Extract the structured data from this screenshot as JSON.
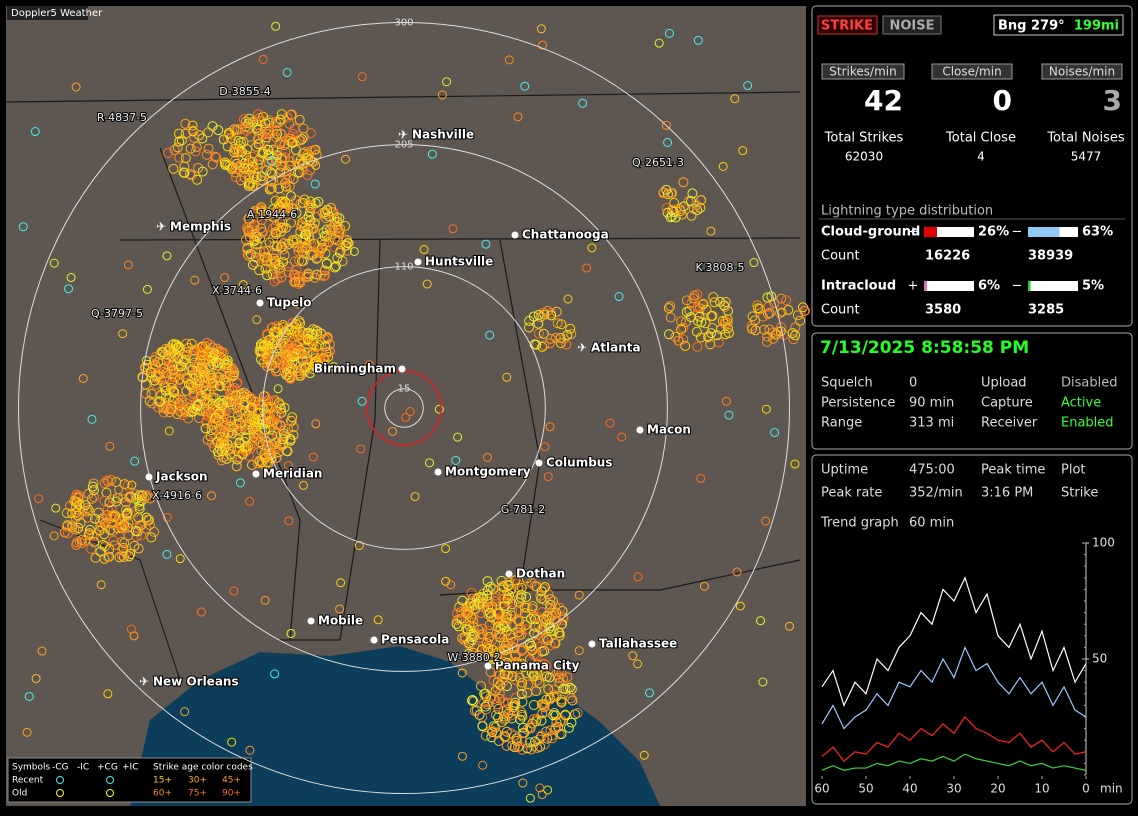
{
  "app_label": "Doppler5 Weather",
  "map": {
    "range_rings": [
      15,
      110,
      205,
      300
    ],
    "cities": [
      "Nashville",
      "Memphis",
      "Chattanooga",
      "Huntsville",
      "Tupelo",
      "Atlanta",
      "Birmingham",
      "Macon",
      "Jackson",
      "Meridian",
      "Montgomery",
      "Columbus",
      "Dothan",
      "Mobile",
      "Pensacola",
      "Tallahassee",
      "Panama City",
      "New Orleans"
    ],
    "stations": [
      "R-4837-5",
      "D-3855-4",
      "Q-2651-3",
      "A-1944-6",
      "K-3808-5",
      "X-3744-6",
      "Q-3797-5",
      "X-4916-6",
      "G-781-2",
      "W-3880-2"
    ],
    "legend": {
      "symbols_label": "Symbols",
      "symbol_types": [
        "-CG",
        "-IC",
        "+CG",
        "+IC"
      ],
      "age_title": "Strike age color codes",
      "rows": [
        "Recent",
        "Old"
      ],
      "ages": [
        "15+",
        "30+",
        "45+",
        "60+",
        "75+",
        "90+"
      ]
    }
  },
  "status": {
    "mode_buttons": [
      "STRIKE",
      "NOISE"
    ],
    "bearing": "Bng 279°",
    "distance": "199mi"
  },
  "rates": [
    {
      "header": "Strikes/min",
      "value": 42,
      "total_label": "Total Strikes",
      "total": 62030
    },
    {
      "header": "Close/min",
      "value": 0,
      "total_label": "Total Close",
      "total": 4
    },
    {
      "header": "Noises/min",
      "value": 3,
      "total_label": "Total Noises",
      "total": 5477
    }
  ],
  "distribution": {
    "title": "Lightning type distribution",
    "plus_sign": "+",
    "minus_sign": "−",
    "count_label": "Count",
    "rows": [
      {
        "label": "Cloud-ground",
        "plus": {
          "value": 26,
          "label": "26%"
        },
        "minus": {
          "value": 63,
          "label": "63%"
        },
        "plus_count": 16226,
        "minus_count": 38939
      },
      {
        "label": "Intracloud",
        "plus": {
          "value": 6,
          "label": "6%"
        },
        "minus": {
          "value": 5,
          "label": "5%"
        },
        "plus_count": 3580,
        "minus_count": 3285
      }
    ]
  },
  "timestamp": "7/13/2025 8:58:58 PM",
  "settings": [
    [
      "Squelch",
      0,
      "Upload",
      "Disabled"
    ],
    [
      "Persistence",
      "90 min",
      "Capture",
      "Active"
    ],
    [
      "Range",
      "313 mi",
      "Receiver",
      "Enabled"
    ]
  ],
  "stats": [
    [
      "Uptime",
      "475:00",
      "Peak time",
      "Plot"
    ],
    [
      "Peak rate",
      "352/min",
      "3:16 PM",
      "Strike"
    ],
    [
      "Trend graph",
      "60 min"
    ]
  ],
  "trend_graph": {
    "xlim": [
      60,
      0
    ],
    "ylim": [
      0,
      100
    ],
    "xticks": [
      60,
      50,
      40,
      30,
      20,
      10,
      0
    ],
    "yticks": [
      50,
      100
    ],
    "x_unit": "min",
    "x": [
      60,
      57.5,
      55,
      52.5,
      50,
      47.5,
      45,
      42.5,
      40,
      37.5,
      35,
      32.5,
      30,
      27.5,
      25,
      22.5,
      20,
      17.5,
      15,
      12.5,
      10,
      7.5,
      5,
      2.5,
      0
    ],
    "series": [
      {
        "color": "#ffffff",
        "values": [
          38,
          45,
          30,
          40,
          35,
          50,
          45,
          55,
          60,
          70,
          65,
          80,
          75,
          85,
          70,
          78,
          60,
          55,
          65,
          50,
          62,
          45,
          55,
          40,
          48
        ]
      },
      {
        "color": "#9cc8ff",
        "values": [
          22,
          30,
          20,
          25,
          28,
          35,
          30,
          40,
          38,
          45,
          40,
          50,
          42,
          55,
          45,
          48,
          40,
          35,
          42,
          35,
          40,
          30,
          38,
          28,
          25
        ]
      },
      {
        "color": "#ff2020",
        "values": [
          8,
          12,
          6,
          10,
          9,
          14,
          12,
          18,
          15,
          20,
          17,
          22,
          18,
          25,
          20,
          18,
          15,
          14,
          18,
          12,
          15,
          10,
          14,
          9,
          10
        ]
      },
      {
        "color": "#40d040",
        "values": [
          2,
          4,
          2,
          3,
          3,
          5,
          4,
          6,
          5,
          7,
          6,
          8,
          6,
          9,
          7,
          6,
          5,
          4,
          6,
          4,
          5,
          3,
          4,
          3,
          2
        ]
      }
    ]
  }
}
